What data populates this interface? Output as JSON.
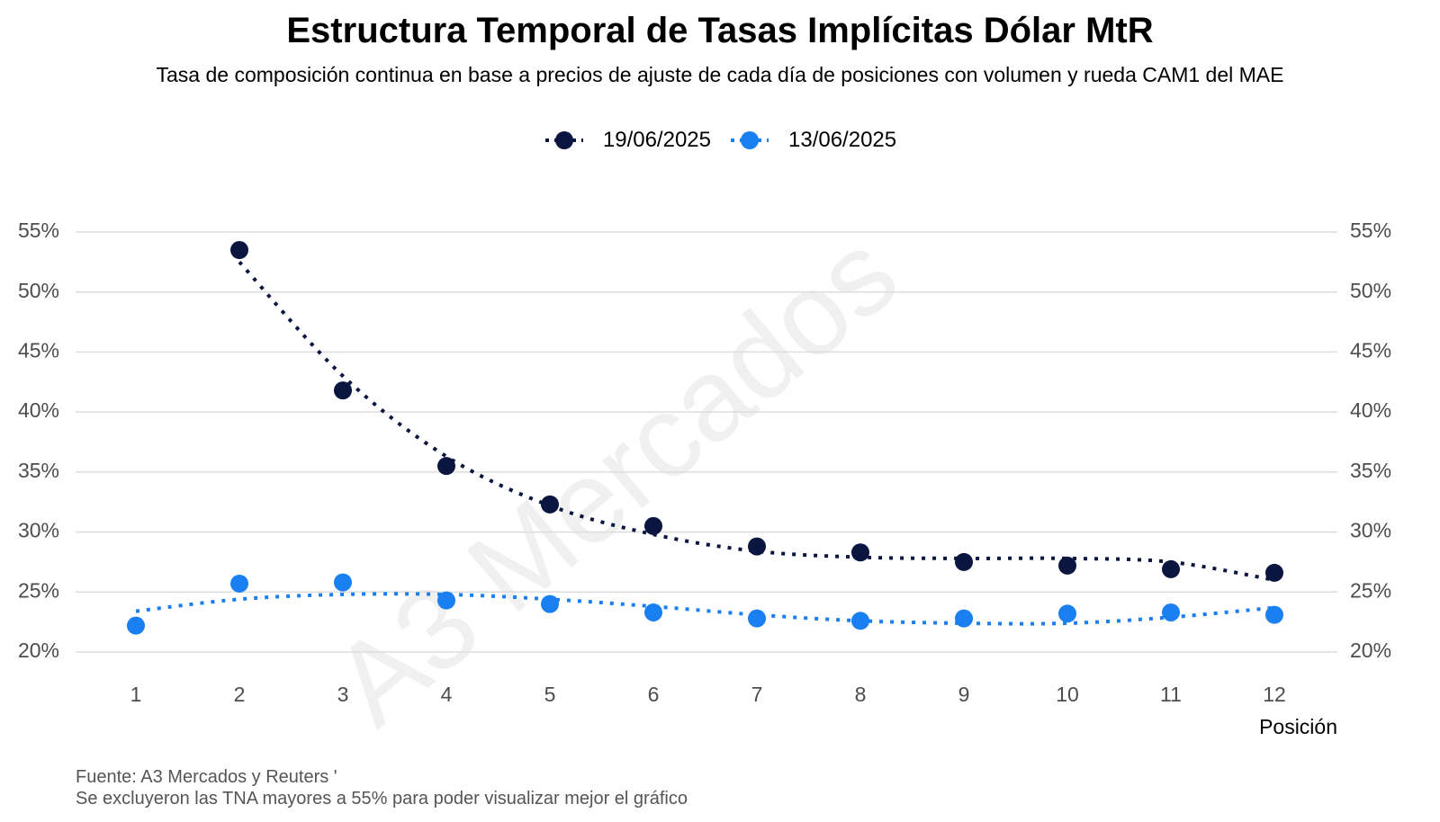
{
  "title": "Estructura Temporal de Tasas Implícitas Dólar MtR",
  "subtitle": "Tasa de composición continua en base a precios de ajuste de cada día de posiciones con volumen y rueda CAM1 del MAE",
  "watermark": "A3 Mercados",
  "footer": {
    "source": "Fuente: A3 Mercados y Reuters '",
    "note": "Se excluyeron las TNA mayores a 55% para poder visualizar mejor el gráfico"
  },
  "colors": {
    "series1": "#0a1640",
    "series2": "#1a7ff0",
    "grid": "#dddddd"
  },
  "chart_data": {
    "type": "scatter",
    "xlabel": "Posición",
    "ylabel": "",
    "x": [
      1,
      2,
      3,
      4,
      5,
      6,
      7,
      8,
      9,
      10,
      11,
      12
    ],
    "ylim": [
      20,
      55
    ],
    "yticks": [
      20,
      25,
      30,
      35,
      40,
      45,
      50,
      55
    ],
    "ytick_labels": [
      "20%",
      "25%",
      "30%",
      "35%",
      "40%",
      "45%",
      "50%",
      "55%"
    ],
    "dual_y_axis": true,
    "trend_lines": "dotted",
    "legend_position": "top",
    "grid": true,
    "series": [
      {
        "name": "19/06/2025",
        "color": "#0a1640",
        "values": [
          null,
          53.5,
          41.8,
          35.5,
          32.3,
          30.5,
          28.8,
          28.3,
          27.5,
          27.2,
          26.9,
          26.6
        ],
        "trend": [
          null,
          52.5,
          43.0,
          36.3,
          32.2,
          29.8,
          28.4,
          27.9,
          27.8,
          27.8,
          27.5,
          26.0
        ]
      },
      {
        "name": "13/06/2025",
        "color": "#1a7ff0",
        "values": [
          22.2,
          25.7,
          25.8,
          24.3,
          24.0,
          23.3,
          22.8,
          22.6,
          22.8,
          23.2,
          23.3,
          23.1
        ],
        "trend": [
          23.4,
          24.4,
          24.8,
          24.8,
          24.4,
          23.8,
          23.1,
          22.6,
          22.4,
          22.4,
          22.9,
          23.7
        ]
      }
    ]
  }
}
